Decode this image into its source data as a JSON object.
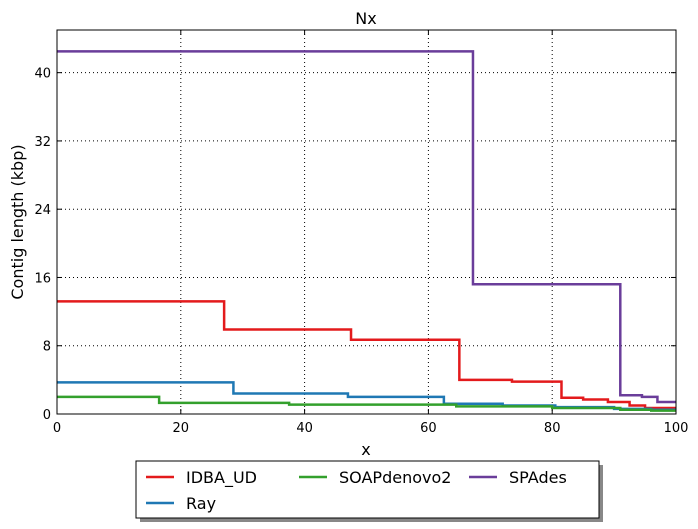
{
  "chart_data": {
    "type": "line",
    "title": "Nx",
    "xlabel": "x",
    "ylabel": "Contig length  (kbp)",
    "xlim": [
      0,
      100
    ],
    "ylim": [
      0,
      45
    ],
    "xticks": [
      0,
      20,
      40,
      60,
      80,
      100
    ],
    "xtick_labels": [
      "0",
      "20",
      "40",
      "60",
      "80",
      "100"
    ],
    "yticks": [
      0,
      8,
      16,
      24,
      32,
      40
    ],
    "ytick_labels": [
      "0",
      "8",
      "16",
      "24",
      "32",
      "40"
    ],
    "grid": true,
    "legend_position": "below-center",
    "series": [
      {
        "name": "IDBA_UD",
        "color": "#e31a1c",
        "steps": [
          [
            0,
            13.2
          ],
          [
            27,
            9.9
          ],
          [
            47.5,
            8.7
          ],
          [
            65,
            4.0
          ],
          [
            73.5,
            3.8
          ],
          [
            81.5,
            1.9
          ],
          [
            85,
            1.7
          ],
          [
            89,
            1.4
          ],
          [
            92.5,
            1.0
          ],
          [
            95,
            0.7
          ]
        ],
        "x_end": 100
      },
      {
        "name": "Ray",
        "color": "#1f78b4",
        "steps": [
          [
            0,
            3.7
          ],
          [
            28.5,
            2.4
          ],
          [
            47,
            2.0
          ],
          [
            62.5,
            1.2
          ],
          [
            72,
            1.0
          ],
          [
            80.5,
            0.8
          ],
          [
            90,
            0.6
          ],
          [
            96,
            0.5
          ]
        ],
        "x_end": 100
      },
      {
        "name": "SOAPdenovo2",
        "color": "#33a02c",
        "steps": [
          [
            0,
            2.0
          ],
          [
            16.5,
            1.3
          ],
          [
            37.5,
            1.1
          ],
          [
            64.5,
            0.9
          ],
          [
            80,
            0.7
          ],
          [
            91,
            0.5
          ],
          [
            96,
            0.4
          ]
        ],
        "x_end": 100
      },
      {
        "name": "SPAdes",
        "color": "#6a3d9a",
        "steps": [
          [
            0,
            42.5
          ],
          [
            67.2,
            15.2
          ],
          [
            91,
            2.2
          ],
          [
            94.5,
            2.0
          ],
          [
            97,
            1.4
          ]
        ],
        "x_end": 100
      }
    ]
  }
}
